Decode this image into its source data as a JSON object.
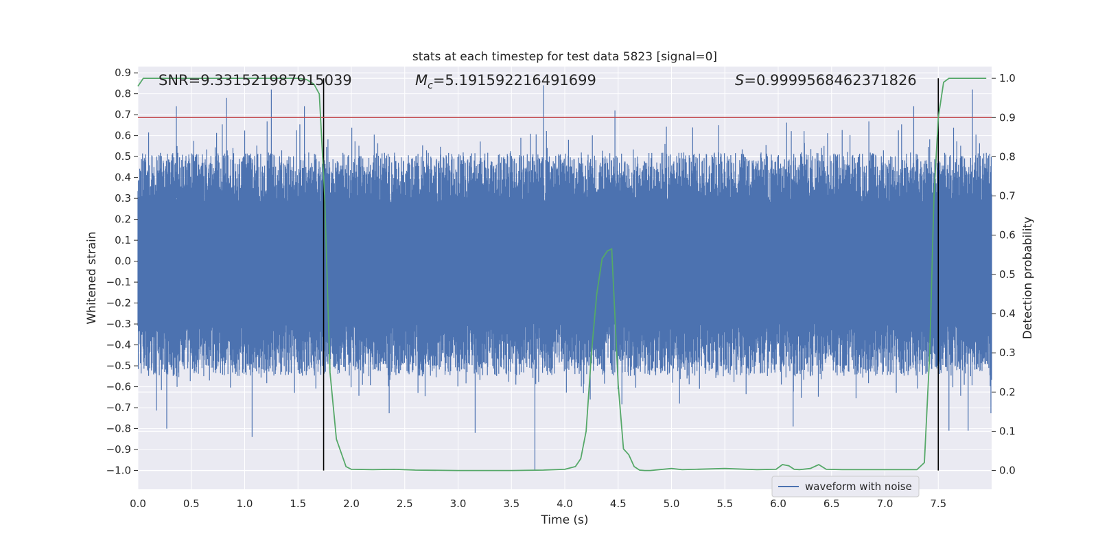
{
  "chart_data": {
    "type": "line",
    "title": "stats at each timestep for test data 5823 [signal=0]",
    "xlabel": "Time (s)",
    "ylabel": "Whitened strain",
    "y2label": "Detection probability",
    "xlim": [
      0.0,
      8.0
    ],
    "ylim": [
      -1.09,
      0.93
    ],
    "y2lim": [
      -0.048,
      1.03
    ],
    "x_ticks": [
      0.0,
      0.5,
      1.0,
      1.5,
      2.0,
      2.5,
      3.0,
      3.5,
      4.0,
      4.5,
      5.0,
      5.5,
      6.0,
      6.5,
      7.0,
      7.5
    ],
    "x_tick_labels": [
      "0.0",
      "0.5",
      "1.0",
      "1.5",
      "2.0",
      "2.5",
      "3.0",
      "3.5",
      "4.0",
      "4.5",
      "5.0",
      "5.5",
      "6.0",
      "6.5",
      "7.0",
      "7.5"
    ],
    "y_ticks": [
      0.9,
      0.8,
      0.7,
      0.6,
      0.5,
      0.4,
      0.3,
      0.2,
      0.1,
      0.0,
      -0.1,
      -0.2,
      -0.3,
      -0.4,
      -0.5,
      -0.6,
      -0.7,
      -0.8,
      -0.9,
      -1.0
    ],
    "y_tick_labels": [
      "0.9",
      "0.8",
      "0.7",
      "0.6",
      "0.5",
      "0.4",
      "0.3",
      "0.2",
      "0.1",
      "0.0",
      "−0.1",
      "−0.2",
      "−0.3",
      "−0.4",
      "−0.5",
      "−0.6",
      "−0.7",
      "−0.8",
      "−0.9",
      "−1.0"
    ],
    "y2_ticks": [
      1.0,
      0.9,
      0.8,
      0.7,
      0.6,
      0.5,
      0.4,
      0.3,
      0.2,
      0.1,
      0.0
    ],
    "y2_tick_labels": [
      "1.0",
      "0.9",
      "0.8",
      "0.7",
      "0.6",
      "0.5",
      "0.4",
      "0.3",
      "0.2",
      "0.1",
      "0.0"
    ],
    "annotations": {
      "snr": "SNR=9.331521987915039",
      "mc_symbol": "M",
      "mc_sub": "c",
      "mc_value": "=5.191592216491699",
      "s_symbol": "S",
      "s_value": "=0.9999568462371826"
    },
    "threshold_y2": 0.9,
    "vertical_lines_x": [
      1.74,
      7.5
    ],
    "waveform": {
      "name": "waveform with noise",
      "noise_upper_range": [
        0.28,
        0.52
      ],
      "noise_lower_range": [
        -0.55,
        -0.3
      ],
      "peaks_high": [
        [
          0.36,
          0.74
        ],
        [
          0.83,
          0.78
        ],
        [
          1.25,
          0.82
        ],
        [
          1.56,
          0.74
        ],
        [
          3.8,
          0.84
        ],
        [
          4.47,
          0.72
        ],
        [
          7.27,
          0.74
        ],
        [
          7.82,
          0.82
        ]
      ],
      "peaks_low": [
        [
          0.27,
          -0.8
        ],
        [
          1.07,
          -0.84
        ],
        [
          3.16,
          -0.82
        ],
        [
          3.72,
          -1.0
        ],
        [
          6.14,
          -0.79
        ],
        [
          7.6,
          -0.81
        ],
        [
          7.78,
          -0.81
        ]
      ]
    },
    "series": [
      {
        "name": "detection probability",
        "axis": "right",
        "x": [
          0.0,
          0.05,
          0.1,
          0.2,
          0.5,
          1.0,
          1.5,
          1.58,
          1.65,
          1.7,
          1.75,
          1.8,
          1.86,
          1.95,
          2.0,
          2.2,
          2.4,
          2.6,
          3.0,
          3.5,
          3.8,
          4.0,
          4.1,
          4.15,
          4.2,
          4.25,
          4.3,
          4.35,
          4.4,
          4.44,
          4.5,
          4.55,
          4.6,
          4.65,
          4.7,
          4.75,
          4.8,
          5.0,
          5.1,
          5.5,
          5.8,
          5.98,
          6.04,
          6.1,
          6.15,
          6.2,
          6.3,
          6.38,
          6.45,
          6.6,
          7.0,
          7.3,
          7.37,
          7.42,
          7.46,
          7.5,
          7.55,
          7.6,
          7.7,
          7.95
        ],
        "values": [
          0.98,
          1.0,
          1.0,
          1.0,
          1.0,
          1.0,
          1.0,
          0.997,
          0.985,
          0.96,
          0.7,
          0.25,
          0.08,
          0.01,
          0.003,
          0.002,
          0.003,
          0.001,
          0.0,
          0.0,
          0.001,
          0.003,
          0.01,
          0.03,
          0.1,
          0.3,
          0.45,
          0.54,
          0.56,
          0.565,
          0.22,
          0.055,
          0.04,
          0.01,
          0.001,
          0.0,
          0.0,
          0.005,
          0.002,
          0.005,
          0.002,
          0.003,
          0.015,
          0.012,
          0.003,
          0.002,
          0.005,
          0.015,
          0.003,
          0.002,
          0.002,
          0.002,
          0.02,
          0.3,
          0.7,
          0.9,
          0.99,
          1.0,
          1.0,
          1.0
        ]
      }
    ],
    "colors": {
      "waveform": "#4c72b0",
      "probability": "#55a868",
      "threshold": "#c44e52",
      "vlines": "#000000",
      "plot_bg": "#eaeaf2",
      "grid": "#ffffff"
    },
    "legend": [
      "waveform with noise"
    ],
    "legend_placement": "lower-right"
  }
}
